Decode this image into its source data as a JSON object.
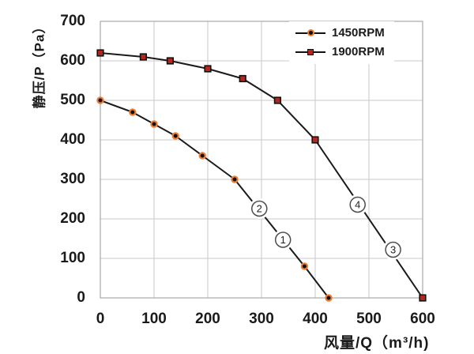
{
  "chart_data": {
    "type": "line",
    "title": "",
    "xlabel": "风量/Q（m³/h)",
    "ylabel": "静压/P（Pa）",
    "xlim": [
      0,
      600
    ],
    "ylim": [
      0,
      700
    ],
    "x_ticks": [
      0,
      100,
      200,
      300,
      400,
      500,
      600
    ],
    "y_ticks": [
      0,
      100,
      200,
      300,
      400,
      500,
      600,
      700
    ],
    "grid": true,
    "legend_position": "top-right",
    "colors": {
      "line": "#1a1a1a",
      "grid": "#c9c9c9",
      "plot_border": "#a8a8a8",
      "text": "#1a1a1a",
      "marker_1450_fill": "#111111",
      "marker_1450_edge": "#ED7D31",
      "marker_1900_fill": "#B3251E",
      "marker_1900_edge": "#111111",
      "annotation_circle_edge": "#4d4d4d"
    },
    "series": [
      {
        "name": "1450RPM",
        "marker": "circle",
        "points": [
          [
            0,
            500
          ],
          [
            60,
            470
          ],
          [
            100,
            440
          ],
          [
            140,
            410
          ],
          [
            190,
            360
          ],
          [
            250,
            300
          ],
          [
            380,
            80
          ],
          [
            425,
            0
          ]
        ]
      },
      {
        "name": "1900RPM",
        "marker": "square",
        "points": [
          [
            0,
            620
          ],
          [
            80,
            610
          ],
          [
            130,
            600
          ],
          [
            200,
            580
          ],
          [
            265,
            555
          ],
          [
            330,
            500
          ],
          [
            400,
            400
          ],
          [
            600,
            0
          ]
        ]
      }
    ],
    "annotations": [
      {
        "label": "1",
        "x": 340,
        "y": 147
      },
      {
        "label": "2",
        "x": 296,
        "y": 226
      },
      {
        "label": "3",
        "x": 545,
        "y": 122
      },
      {
        "label": "4",
        "x": 479,
        "y": 236
      }
    ]
  }
}
